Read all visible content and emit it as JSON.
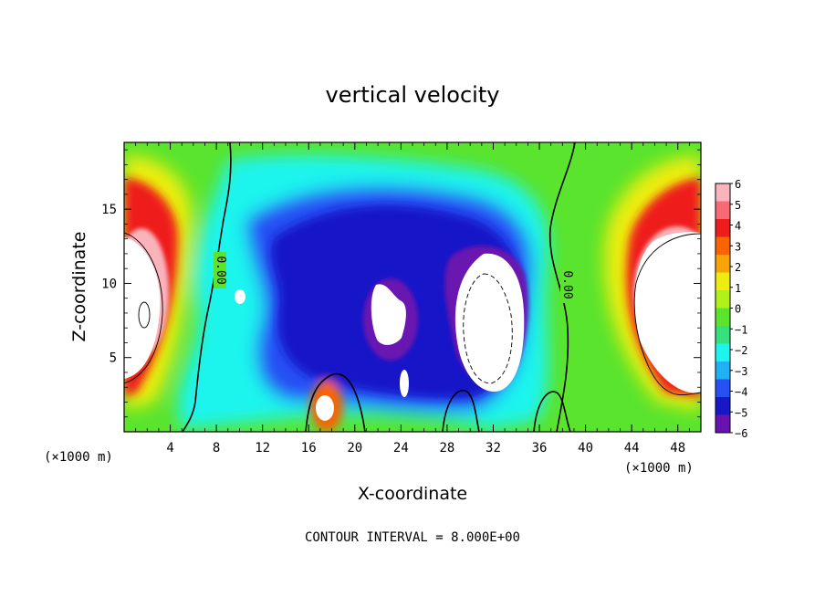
{
  "chart_data": {
    "type": "heatmap",
    "title": "vertical velocity",
    "xlabel": "X-coordinate",
    "ylabel": "Z-coordinate",
    "x_unit": "(×1000 m)",
    "y_unit": "(×1000 m)",
    "xlim": [
      0,
      50
    ],
    "ylim": [
      0,
      19.5
    ],
    "x_ticks": [
      4,
      8,
      12,
      16,
      20,
      24,
      28,
      32,
      36,
      40,
      44,
      48
    ],
    "y_ticks": [
      5,
      10,
      15
    ],
    "colorbar": {
      "ticks": [
        6,
        5,
        4,
        3,
        2,
        1,
        0,
        -1,
        -2,
        -3,
        -4,
        -5,
        -6
      ],
      "colors": [
        "#f9b3bb",
        "#f86a73",
        "#ef1c1c",
        "#f86404",
        "#f8a406",
        "#eded10",
        "#b2f01a",
        "#5ae42d",
        "#35e17c",
        "#1ef4ee",
        "#20b0f4",
        "#2550f4",
        "#1818c8",
        "#6a12b0"
      ]
    },
    "contour_label": "0.00",
    "contour_interval_note": "CONTOUR INTERVAL = 8.000E+00",
    "grid": false,
    "features": [
      {
        "kind": "updraft",
        "x": 2,
        "z": 10,
        "peak": 14
      },
      {
        "kind": "updraft",
        "x": 48,
        "z": 10,
        "peak": 14
      },
      {
        "kind": "downdraft",
        "x": 31,
        "z": 8,
        "peak": -14
      },
      {
        "kind": "downdraft",
        "x": 24,
        "z": 8,
        "peak": -10
      },
      {
        "kind": "updraft",
        "x": 17.5,
        "z": 1.8,
        "peak": 8
      }
    ]
  }
}
